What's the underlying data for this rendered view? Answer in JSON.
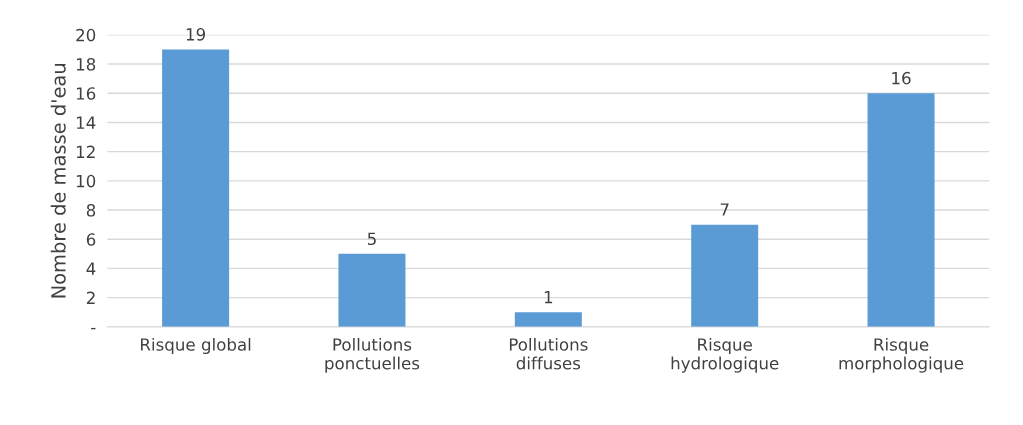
{
  "chart_data": {
    "type": "bar",
    "ylabel": "Nombre de masse d'eau",
    "categories": [
      "Risque global",
      "Pollutions\nponctuelles",
      "Pollutions\ndiffuses",
      "Risque\nhydrologique",
      "Risque\nmorphologique"
    ],
    "values": [
      19,
      5,
      1,
      7,
      16
    ],
    "color": "#5b9bd5",
    "ylim": [
      0,
      20
    ],
    "yticks": [
      {
        "value": 0,
        "label": "-"
      },
      2,
      4,
      6,
      8,
      10,
      12,
      14,
      16,
      18,
      20
    ],
    "grid": "y",
    "data_labels": true
  }
}
